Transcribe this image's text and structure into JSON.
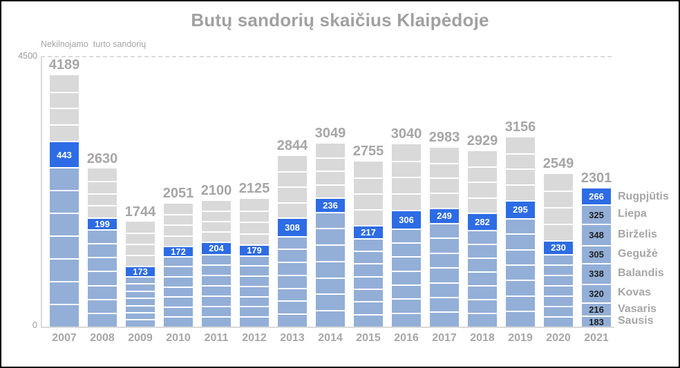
{
  "title": "Butų sandorių skaičius Klaipėdoje",
  "y_axis": {
    "title": "Nekilnojamo  turto sandorių",
    "max_tick": "4500",
    "min_tick": "0"
  },
  "colors": {
    "august_blue": "#2d6ce4",
    "other_months_blue": "#93afd7",
    "future_months_gray": "#d9d9d9",
    "text_gray": "#a6a6a6",
    "value_on_blue": "#ffffff",
    "value_on_light": "#1f1f1f",
    "axis_line_gray": "#d9d9d9"
  },
  "chart_data": {
    "type": "bar",
    "stacked": true,
    "title": "Butų sandorių skaičius Klaipėdoje",
    "ylabel": "Nekilnojamo turto sandorių",
    "ylim": [
      0,
      4500
    ],
    "gridlines": [
      4500
    ],
    "grid": "single dashed line at 4500",
    "legend_position": "none",
    "categories": [
      "2007",
      "2008",
      "2009",
      "2010",
      "2011",
      "2012",
      "2013",
      "2014",
      "2015",
      "2016",
      "2017",
      "2018",
      "2019",
      "2020",
      "2021"
    ],
    "totals": [
      4189,
      2630,
      1744,
      2051,
      2100,
      2125,
      2844,
      3049,
      2755,
      3040,
      2983,
      2929,
      3156,
      2549,
      2301
    ],
    "august_highlight_values": [
      443,
      199,
      173,
      172,
      204,
      179,
      308,
      236,
      217,
      306,
      249,
      282,
      295,
      230,
      266
    ],
    "segments_legend": {
      "light_blue": "months January–July (Sausis–Liepa)",
      "bright_blue": "August (Rugpjūtis), value labeled in white",
      "gray": "months September–December"
    },
    "bars": [
      {
        "year": "2007",
        "total": 4189,
        "august": 443,
        "jan_jul_sum_est": 2654,
        "sep_dec_sum_est": 1092
      },
      {
        "year": "2008",
        "total": 2630,
        "august": 199,
        "jan_jul_sum_est": 1623,
        "sep_dec_sum_est": 808
      },
      {
        "year": "2009",
        "total": 1744,
        "august": 173,
        "jan_jul_sum_est": 842,
        "sep_dec_sum_est": 729
      },
      {
        "year": "2010",
        "total": 2051,
        "august": 172,
        "jan_jul_sum_est": 1177,
        "sep_dec_sum_est": 702
      },
      {
        "year": "2011",
        "total": 2100,
        "august": 204,
        "jan_jul_sum_est": 1212,
        "sep_dec_sum_est": 684
      },
      {
        "year": "2012",
        "total": 2125,
        "august": 179,
        "jan_jul_sum_est": 1189,
        "sep_dec_sum_est": 757
      },
      {
        "year": "2013",
        "total": 2844,
        "august": 308,
        "jan_jul_sum_est": 1512,
        "sep_dec_sum_est": 1024
      },
      {
        "year": "2014",
        "total": 3049,
        "august": 236,
        "jan_jul_sum_est": 1915,
        "sep_dec_sum_est": 898
      },
      {
        "year": "2015",
        "total": 2755,
        "august": 217,
        "jan_jul_sum_est": 1477,
        "sep_dec_sum_est": 1061
      },
      {
        "year": "2016",
        "total": 3040,
        "august": 306,
        "jan_jul_sum_est": 1639,
        "sep_dec_sum_est": 1095
      },
      {
        "year": "2017",
        "total": 2983,
        "august": 249,
        "jan_jul_sum_est": 1731,
        "sep_dec_sum_est": 1003
      },
      {
        "year": "2018",
        "total": 2929,
        "august": 282,
        "jan_jul_sum_est": 1616,
        "sep_dec_sum_est": 1031
      },
      {
        "year": "2019",
        "total": 3156,
        "august": 295,
        "jan_jul_sum_est": 1812,
        "sep_dec_sum_est": 1049
      },
      {
        "year": "2020",
        "total": 2549,
        "august": 230,
        "jan_jul_sum_est": 1212,
        "sep_dec_sum_est": 1107
      },
      {
        "year": "2021",
        "total": 2301,
        "august": 266,
        "months_bottom_up": [
          {
            "label": "Sausis",
            "value": 183
          },
          {
            "label": "Vasaris",
            "value": 216
          },
          {
            "label": "Kovas",
            "value": 320
          },
          {
            "label": "Balandis",
            "value": 338
          },
          {
            "label": "Gegužė",
            "value": 305
          },
          {
            "label": "Birželis",
            "value": 348
          },
          {
            "label": "Liepa",
            "value": 325
          },
          {
            "label": "Rugpjūtis",
            "value": 266
          }
        ]
      }
    ]
  }
}
